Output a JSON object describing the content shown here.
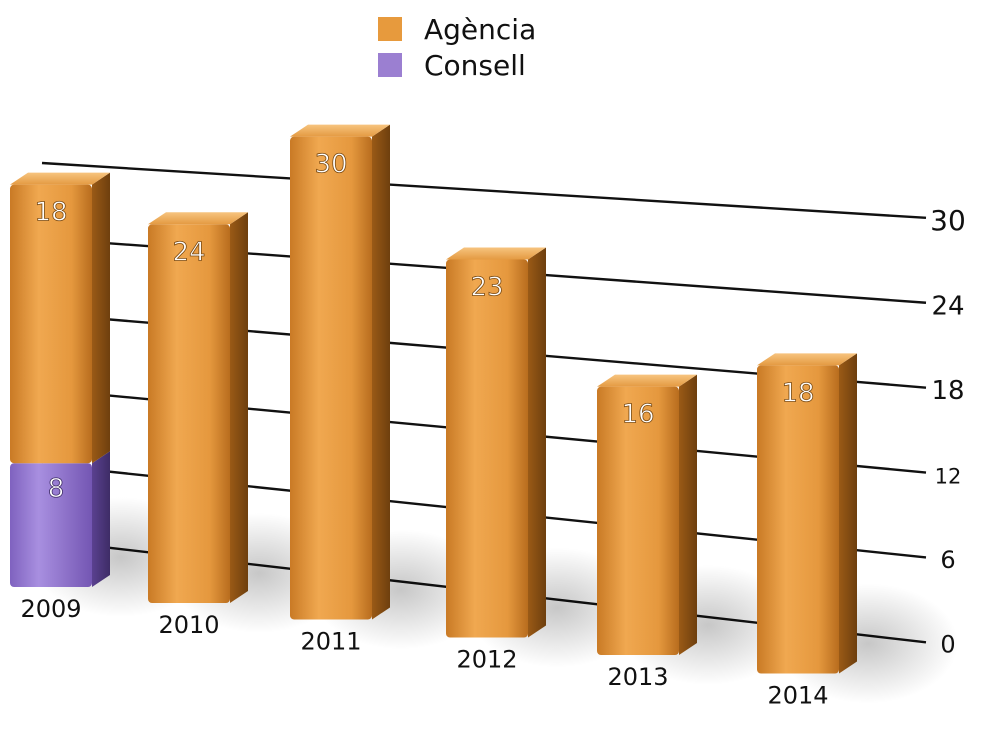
{
  "chart_data": {
    "type": "bar",
    "stacked": true,
    "categories": [
      "2009",
      "2010",
      "2011",
      "2012",
      "2013",
      "2014"
    ],
    "series": [
      {
        "name": "Consell",
        "color": "#9b7fd1",
        "values": [
          8,
          0,
          0,
          0,
          0,
          0
        ]
      },
      {
        "name": "Agència",
        "color": "#e79a3d",
        "values": [
          18,
          24,
          30,
          23,
          16,
          18
        ]
      }
    ],
    "bar_labels": {
      "Consell": [
        "8",
        "",
        "",
        "",
        "",
        ""
      ],
      "Agència": [
        "18",
        "24",
        "30",
        "23",
        "16",
        "18"
      ]
    },
    "yticks": [
      "0",
      "6",
      "12",
      "18",
      "24",
      "30"
    ],
    "ylim": [
      0,
      30
    ],
    "legend_position": "top-center",
    "grid": true,
    "style": "3d"
  }
}
